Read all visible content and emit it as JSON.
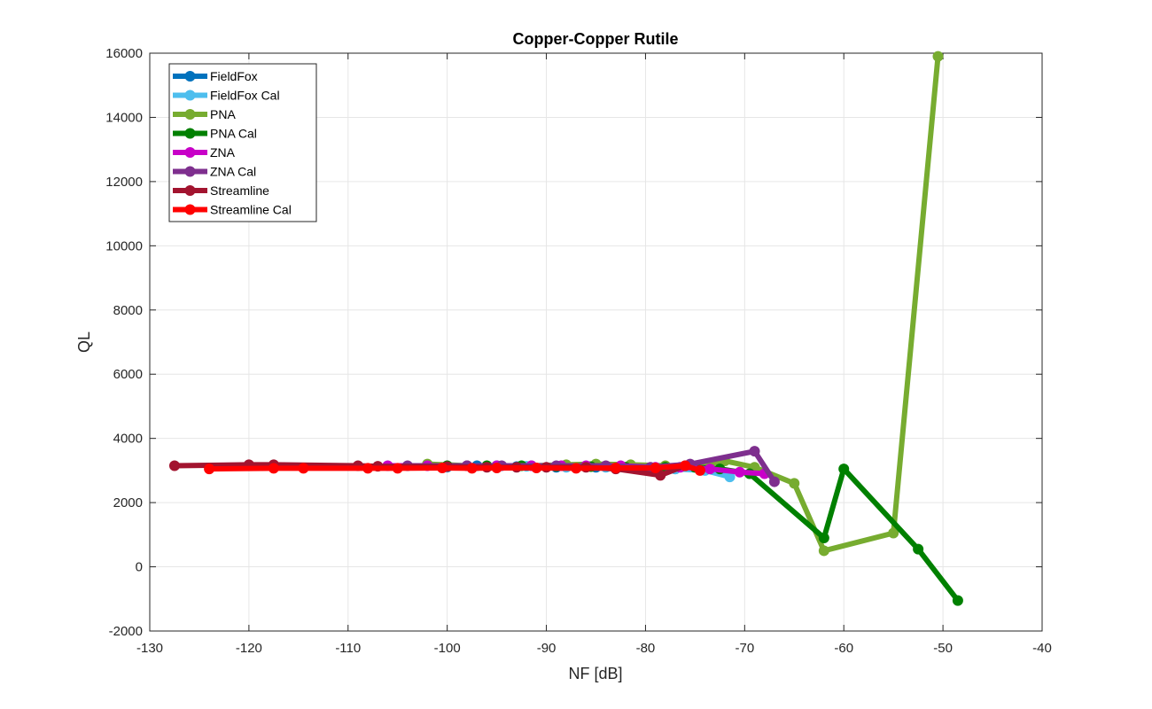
{
  "chart_data": {
    "type": "line",
    "title": "Copper-Copper Rutile",
    "xlabel": "NF [dB]",
    "ylabel": "QL",
    "xlim": [
      -130,
      -40
    ],
    "ylim": [
      -2000,
      16000
    ],
    "xticks": [
      -130,
      -120,
      -110,
      -100,
      -90,
      -80,
      -70,
      -60,
      -50,
      -40
    ],
    "yticks": [
      -2000,
      0,
      2000,
      4000,
      6000,
      8000,
      10000,
      12000,
      14000,
      16000
    ],
    "xtick_labels": [
      "-130",
      "-120",
      "-110",
      "-100",
      "-90",
      "-80",
      "-70",
      "-60",
      "-50",
      "-40"
    ],
    "ytick_labels": [
      "-2000",
      "0",
      "2000",
      "4000",
      "6000",
      "8000",
      "10000",
      "12000",
      "14000",
      "16000"
    ],
    "grid": true,
    "legend_position": "top-left",
    "series": [
      {
        "name": "FieldFox",
        "color": "#0072BD",
        "x": [
          -97,
          -93,
          -89,
          -85,
          -81,
          -77
        ],
        "y": [
          3150,
          3120,
          3100,
          3100,
          3080,
          3050
        ]
      },
      {
        "name": "FieldFox Cal",
        "color": "#4DBEEE",
        "x": [
          -100,
          -96,
          -92,
          -88,
          -84,
          -80,
          -77,
          -74,
          -71.5
        ],
        "y": [
          3100,
          3120,
          3130,
          3100,
          3100,
          3080,
          3050,
          3000,
          2800
        ]
      },
      {
        "name": "PNA",
        "color": "#77AC30",
        "x": [
          -102,
          -98,
          -95,
          -91.5,
          -88,
          -85,
          -81.5,
          -78,
          -75,
          -72,
          -69,
          -65,
          -62,
          -55,
          -50.5
        ],
        "y": [
          3200,
          3150,
          3150,
          3150,
          3180,
          3200,
          3180,
          3150,
          3100,
          3300,
          3100,
          2600,
          500,
          1050,
          15900
        ]
      },
      {
        "name": "PNA Cal",
        "color": "#008000",
        "x": [
          -100,
          -96,
          -92.5,
          -89,
          -85.5,
          -82,
          -78,
          -75,
          -72.5,
          -69.5,
          -62,
          -60,
          -52.5,
          -48.5
        ],
        "y": [
          3150,
          3150,
          3150,
          3130,
          3120,
          3100,
          3100,
          3100,
          3050,
          2900,
          900,
          3050,
          550,
          -1050
        ]
      },
      {
        "name": "ZNA",
        "color": "#C800C8",
        "x": [
          -106,
          -102,
          -98,
          -95,
          -91.5,
          -88.5,
          -86,
          -82.5,
          -79,
          -76.5,
          -73.5,
          -70.5,
          -68
        ],
        "y": [
          3150,
          3150,
          3150,
          3150,
          3150,
          3150,
          3150,
          3150,
          3100,
          3100,
          3050,
          2950,
          2900
        ]
      },
      {
        "name": "ZNA Cal",
        "color": "#7E2F8E",
        "x": [
          -104,
          -98,
          -94.5,
          -89,
          -84,
          -79.5,
          -75.5,
          -69,
          -67
        ],
        "y": [
          3150,
          3150,
          3150,
          3150,
          3150,
          3100,
          3200,
          3600,
          2650
        ]
      },
      {
        "name": "Streamline",
        "color": "#A2142F",
        "x": [
          -127.5,
          -120,
          -117.5,
          -109,
          -107,
          -100,
          -96,
          -93,
          -90,
          -86,
          -83,
          -78.5,
          -76
        ],
        "y": [
          3150,
          3180,
          3180,
          3150,
          3130,
          3120,
          3100,
          3100,
          3100,
          3100,
          3050,
          2850,
          3150
        ]
      },
      {
        "name": "Streamline Cal",
        "color": "#FF0000",
        "x": [
          -124,
          -117.5,
          -114.5,
          -108,
          -105,
          -100.5,
          -97.5,
          -95,
          -91,
          -87,
          -83,
          -79,
          -76,
          -74.5
        ],
        "y": [
          3050,
          3070,
          3070,
          3070,
          3070,
          3080,
          3070,
          3080,
          3080,
          3070,
          3080,
          3080,
          3150,
          3000
        ]
      }
    ]
  }
}
